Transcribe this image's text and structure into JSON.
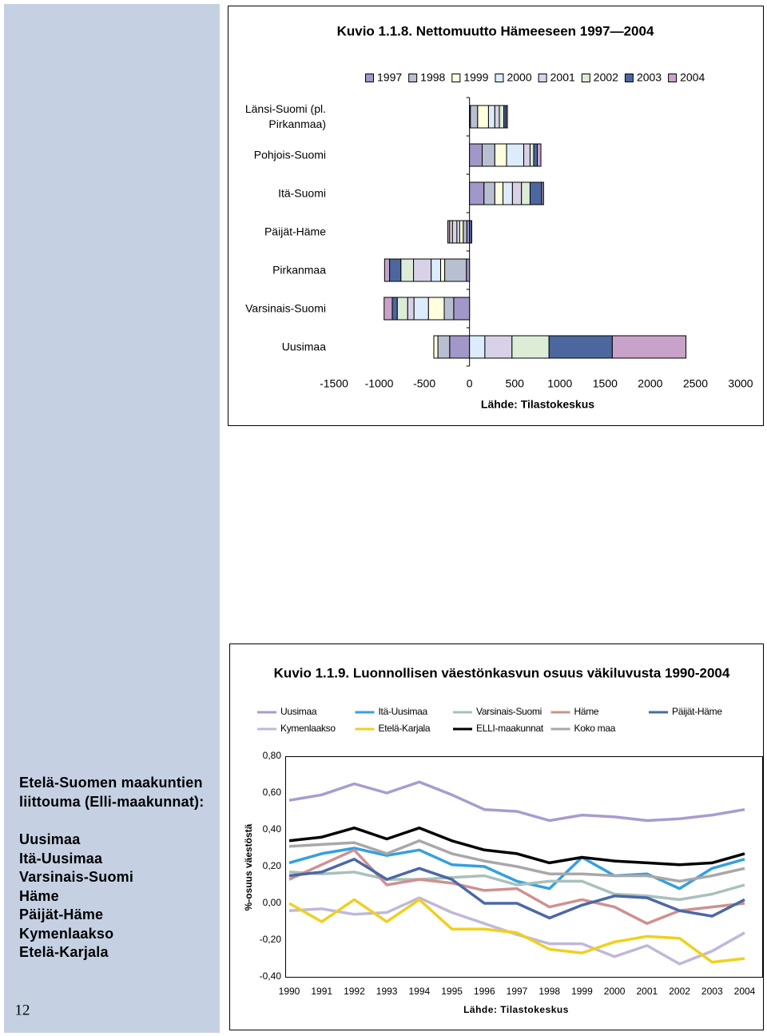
{
  "sidebar": {
    "heading": "Etelä-Suomen maakuntien liittouma (Elli-maakunnat):",
    "items": [
      "Uusimaa",
      "Itä-Uusimaa",
      "Varsinais-Suomi",
      "Häme",
      "Päijät-Häme",
      "Kymenlaakso",
      "Etelä-Karjala"
    ]
  },
  "page_number": "12",
  "chart_data": [
    {
      "type": "bar",
      "orientation": "horizontal",
      "stacked": true,
      "title": "Kuvio 1.1.8. Nettomuutto Hämeeseen 1997—2004",
      "source": "Lähde: Tilastokeskus",
      "legend": "top",
      "categories": [
        "Länsi-Suomi (pl. Pirkanmaa)",
        "Pohjois-Suomi",
        "Itä-Suomi",
        "Päijät-Häme",
        "Pirkanmaa",
        "Varsinais-Suomi",
        "Uusimaa"
      ],
      "xlim": [
        -1500,
        3000
      ],
      "xticks": [
        -1500,
        -1000,
        -500,
        0,
        500,
        1000,
        1500,
        2000,
        2500,
        3000
      ],
      "series": [
        {
          "name": "1997",
          "color": "#a197c9",
          "values": [
            10,
            140,
            160,
            -30,
            -35,
            -175,
            -220
          ]
        },
        {
          "name": "1998",
          "color": "#b8bfd0",
          "values": [
            80,
            140,
            120,
            -40,
            -240,
            -105,
            -130
          ]
        },
        {
          "name": "1999",
          "color": "#ffffe0",
          "values": [
            120,
            130,
            90,
            -40,
            -45,
            -175,
            -45
          ]
        },
        {
          "name": "2000",
          "color": "#dcecfa",
          "values": [
            70,
            190,
            105,
            -30,
            -105,
            -160,
            170
          ]
        },
        {
          "name": "2001",
          "color": "#d9d1e8",
          "values": [
            50,
            70,
            100,
            -50,
            -195,
            -70,
            300
          ]
        },
        {
          "name": "2002",
          "color": "#dcecd6",
          "values": [
            50,
            40,
            95,
            -30,
            -140,
            -115,
            410
          ]
        },
        {
          "name": "2003",
          "color": "#4c679e",
          "values": [
            25,
            40,
            130,
            25,
            -125,
            -55,
            700
          ]
        },
        {
          "name": "2004",
          "color": "#c8a2c8",
          "values": [
            15,
            40,
            20,
            -20,
            -55,
            -90,
            815
          ]
        }
      ]
    },
    {
      "type": "line",
      "title": "Kuvio 1.1.9. Luonnollisen väestönkasvun osuus väkiluvusta 1990-2004",
      "source": "Lähde: Tilastokeskus",
      "y_label": "%-osuus väestöstä",
      "legend": "top",
      "categories": [
        "1990",
        "1991",
        "1992",
        "1993",
        "1994",
        "1995",
        "1996",
        "1997",
        "1998",
        "1999",
        "2000",
        "2001",
        "2002",
        "2003",
        "2004"
      ],
      "ylim": [
        -0.4,
        0.8
      ],
      "yticks": [
        {
          "value": 0.8,
          "label": "0,80"
        },
        {
          "value": 0.6,
          "label": "0,60"
        },
        {
          "value": 0.4,
          "label": "0,40"
        },
        {
          "value": 0.2,
          "label": "0,20"
        },
        {
          "value": 0,
          "label": "0,00"
        },
        {
          "value": -0.2,
          "label": "-0,20"
        },
        {
          "value": -0.4,
          "label": "-0,40"
        }
      ],
      "series": [
        {
          "name": "Uusimaa",
          "color": "#a99bd0",
          "values": [
            0.56,
            0.59,
            0.65,
            0.6,
            0.66,
            0.59,
            0.51,
            0.5,
            0.45,
            0.48,
            0.47,
            0.45,
            0.46,
            0.48,
            0.51
          ]
        },
        {
          "name": "Itä-Uusimaa",
          "color": "#33a0e0",
          "values": [
            0.22,
            0.27,
            0.3,
            0.26,
            0.29,
            0.21,
            0.2,
            0.12,
            0.08,
            0.25,
            0.15,
            0.16,
            0.08,
            0.19,
            0.24
          ]
        },
        {
          "name": "Varsinais-Suomi",
          "color": "#a8c0bc",
          "values": [
            0.17,
            0.16,
            0.17,
            0.13,
            0.13,
            0.14,
            0.15,
            0.1,
            0.12,
            0.12,
            0.05,
            0.04,
            0.02,
            0.05,
            0.1
          ]
        },
        {
          "name": "Häme",
          "color": "#d09090",
          "values": [
            0.13,
            0.21,
            0.29,
            0.1,
            0.13,
            0.11,
            0.07,
            0.08,
            -0.02,
            0.02,
            -0.02,
            -0.11,
            -0.04,
            -0.02,
            0
          ]
        },
        {
          "name": "Päijät-Häme",
          "color": "#4a68a8",
          "values": [
            0.15,
            0.17,
            0.24,
            0.13,
            0.19,
            0.13,
            0,
            0,
            -0.08,
            -0.01,
            0.04,
            0.03,
            -0.04,
            -0.07,
            0.02
          ]
        },
        {
          "name": "Kymenlaakso",
          "color": "#c0b8d8",
          "values": [
            -0.04,
            -0.03,
            -0.06,
            -0.05,
            0.03,
            -0.05,
            -0.11,
            -0.17,
            -0.22,
            -0.22,
            -0.29,
            -0.23,
            -0.33,
            -0.26,
            -0.16
          ]
        },
        {
          "name": "Etelä-Karjala",
          "color": "#f0d020",
          "values": [
            0,
            -0.1,
            0.02,
            -0.1,
            0.02,
            -0.14,
            -0.14,
            -0.16,
            -0.25,
            -0.27,
            -0.21,
            -0.18,
            -0.19,
            -0.32,
            -0.3
          ]
        },
        {
          "name": "ELLI-maakunnat",
          "color": "#000000",
          "values": [
            0.34,
            0.36,
            0.41,
            0.35,
            0.41,
            0.34,
            0.29,
            0.27,
            0.22,
            0.25,
            0.23,
            0.22,
            0.21,
            0.22,
            0.27
          ]
        },
        {
          "name": "Koko maa",
          "color": "#a8a8a8",
          "values": [
            0.31,
            0.32,
            0.33,
            0.27,
            0.34,
            0.27,
            0.23,
            0.2,
            0.16,
            0.16,
            0.15,
            0.15,
            0.12,
            0.15,
            0.19
          ]
        }
      ]
    }
  ]
}
